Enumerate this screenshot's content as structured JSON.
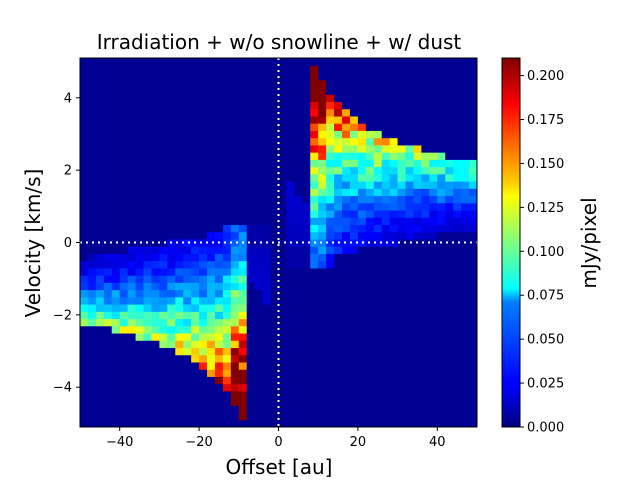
{
  "chart_data": {
    "type": "heatmap",
    "title": "Irradiation + w/o snowline + w/ dust",
    "xlabel": "Offset [au]",
    "ylabel": "Velocity [km/s]",
    "colorbar_label": "mJy/pixel",
    "colormap": "jet",
    "xlim": [
      -50,
      50
    ],
    "ylim": [
      -5.1,
      5.1
    ],
    "clim": [
      0,
      0.21
    ],
    "x_ticks": [
      -40,
      -20,
      0,
      20,
      40
    ],
    "x_tick_labels": [
      "−40",
      "−20",
      "0",
      "20",
      "40"
    ],
    "y_ticks": [
      -4,
      -2,
      0,
      2,
      4
    ],
    "y_tick_labels": [
      "−4",
      "−2",
      "0",
      "2",
      "4"
    ],
    "colorbar_ticks": [
      0.0,
      0.025,
      0.05,
      0.075,
      0.1,
      0.125,
      0.15,
      0.175,
      0.2
    ],
    "colorbar_tick_labels": [
      "0.000",
      "0.025",
      "0.050",
      "0.075",
      "0.100",
      "0.125",
      "0.150",
      "0.175",
      "0.200"
    ],
    "grid": false,
    "reference_lines": [
      {
        "orientation": "vertical",
        "x": 0,
        "style": "dotted",
        "color": "#ffffff"
      },
      {
        "orientation": "horizontal",
        "y": 0,
        "style": "dotted",
        "color": "#ffffff"
      }
    ],
    "pixel_grid": {
      "x_start": -50,
      "x_step": 2,
      "nx": 50,
      "y_start": -5.1,
      "y_step": 0.2,
      "ny": 51
    },
    "emission_model": {
      "description": "Position-velocity diagram: emission concentrated in two lobes, upper-right (positive offset, positive velocity) and lower-left (negative offset, negative velocity), peaking near offset ±10 au and |v| 3-4 km/s",
      "inner_edge_au": 9,
      "outer_edge_au": 50,
      "peak_mjy": 0.21
    }
  }
}
